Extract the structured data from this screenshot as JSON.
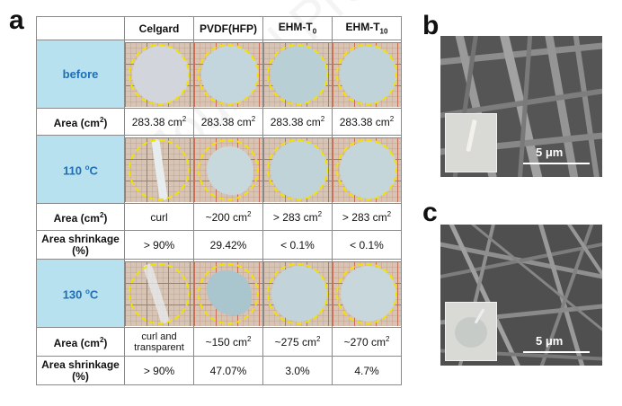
{
  "panels": {
    "a": "a",
    "b": "b",
    "c": "c"
  },
  "table": {
    "columns": [
      "Celgard",
      "PVDF(HFP)",
      "EHM-T",
      "EHM-T"
    ],
    "column_subscripts": [
      "",
      "",
      "0",
      "10"
    ],
    "rows": [
      {
        "label": "before",
        "kind": "photo"
      },
      {
        "label": "Area (cm",
        "label_sup": "2",
        "label_end": ")",
        "kind": "values",
        "values": [
          "283.38 cm",
          "283.38 cm",
          "283.38 cm",
          "283.38 cm"
        ],
        "value_sup": [
          "2",
          "2",
          "2",
          "2"
        ]
      },
      {
        "label": "110 ",
        "label_sup": "o",
        "label_end": "C",
        "kind": "photo"
      },
      {
        "label": "Area (cm",
        "label_sup": "2",
        "label_end": ")",
        "kind": "values",
        "values": [
          "curl",
          "~200 cm",
          "> 283 cm",
          "> 283 cm"
        ],
        "value_sup": [
          "",
          "2",
          "2",
          "2"
        ]
      },
      {
        "label": "Area shrinkage (%)",
        "kind": "values",
        "values": [
          "> 90%",
          "29.42%",
          "< 0.1%",
          "< 0.1%"
        ]
      },
      {
        "label": "130 ",
        "label_sup": "o",
        "label_end": "C",
        "kind": "photo"
      },
      {
        "label": "Area (cm",
        "label_sup": "2",
        "label_end": ")",
        "kind": "values",
        "values": [
          "curl and transparent",
          "~150 cm",
          "~275 cm",
          "~270 cm"
        ],
        "value_sup": [
          "",
          "2",
          "2",
          "2"
        ]
      },
      {
        "label": "Area shrinkage (%)",
        "kind": "values",
        "values": [
          "> 90%",
          "47.07%",
          "3.0%",
          "4.7%"
        ]
      }
    ]
  },
  "sem": {
    "b_scale": "5 μm",
    "c_scale": "5 μm"
  },
  "colors": {
    "highlight_cell": "#b7e1ee",
    "highlight_text": "#1e6fb8",
    "dash_ring": "#f2e200"
  }
}
